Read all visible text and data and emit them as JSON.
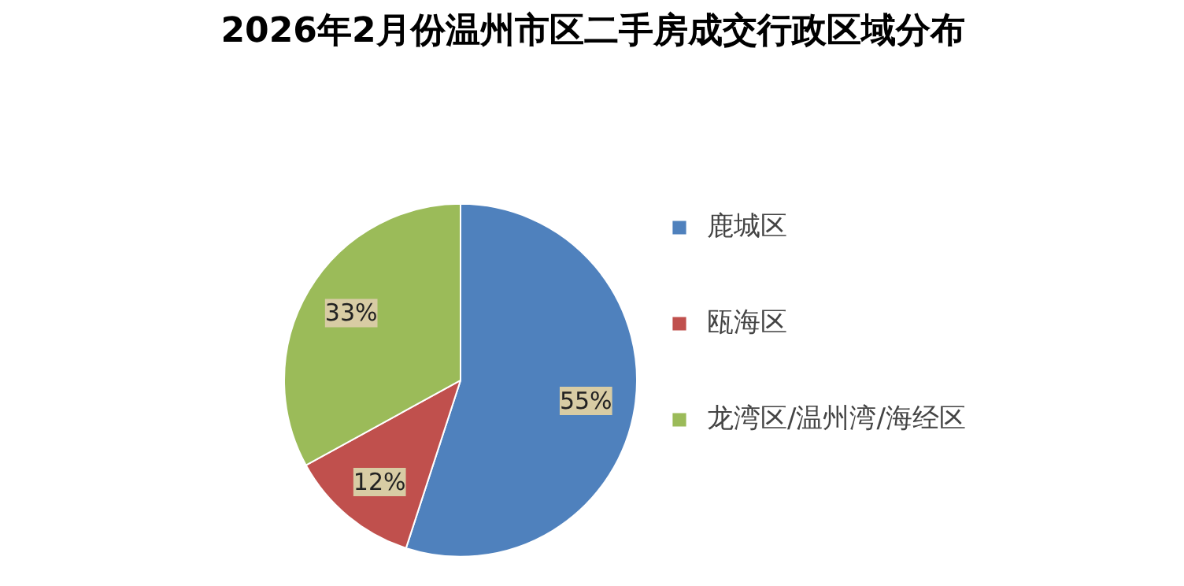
{
  "chart_data": {
    "type": "pie",
    "title": "2026年2月份温州市区二手房成交行政区域分布",
    "categories": [
      "鹿城区",
      "瓯海区",
      "龙湾区/温州湾/海经区"
    ],
    "values": [
      55,
      12,
      33
    ],
    "colors": [
      "#4f81bd",
      "#c0504d",
      "#9bbb59"
    ],
    "value_labels": [
      "55%",
      "12%",
      "33%"
    ],
    "legend": "right"
  }
}
